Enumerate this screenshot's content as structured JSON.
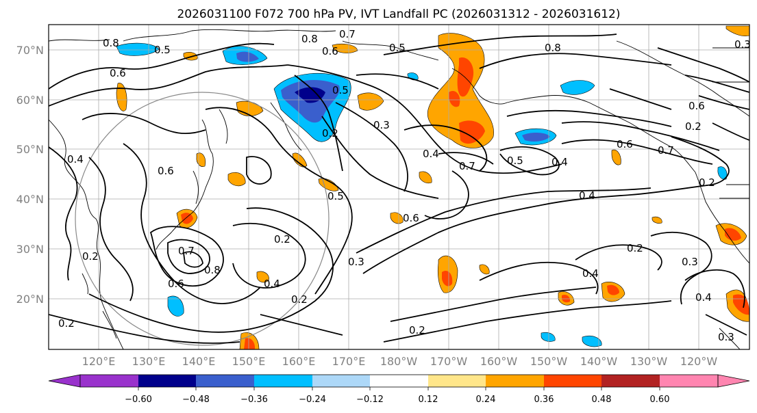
{
  "title": "2026031100 F072 700 hPa PV, IVT Landfall PC (2026031312 - 2026031612)",
  "map": {
    "lat_labels": [
      "70°N",
      "60°N",
      "50°N",
      "40°N",
      "30°N",
      "20°N"
    ],
    "lon_labels": [
      "120°E",
      "130°E",
      "140°E",
      "150°E",
      "160°E",
      "170°E",
      "180°W",
      "170°W",
      "160°W",
      "150°W",
      "140°W",
      "130°W",
      "120°W"
    ],
    "contour_labels": [
      "0.8",
      "0.5",
      "0.6",
      "0.8",
      "0.6",
      "0.5",
      "0.7",
      "0.5",
      "0.8",
      "0.3",
      "0.2",
      "0.4",
      "0.7",
      "0.5",
      "0.4",
      "0.6",
      "0.2",
      "0.6",
      "0.4",
      "0.2",
      "0.7",
      "0.6",
      "0.5",
      "0.6",
      "0.4",
      "0.2",
      "0.7",
      "0.8",
      "0.6",
      "0.4",
      "0.2",
      "0.3",
      "0.2",
      "0.2",
      "0.2",
      "0.3",
      "0.4",
      "0.2",
      "0.4",
      "0.3",
      "0.3"
    ]
  },
  "colorbar": {
    "ticks": [
      "−0.60",
      "−0.48",
      "−0.36",
      "−0.24",
      "−0.12",
      "0.12",
      "0.24",
      "0.36",
      "0.48",
      "0.60"
    ],
    "colors": [
      "#9932cc",
      "#00008b",
      "#3a5fcd",
      "#00bfff",
      "#add8f8",
      "#ffffff",
      "#ffe68a",
      "#ffa500",
      "#ff4500",
      "#b22222",
      "#ff85b0"
    ]
  }
}
